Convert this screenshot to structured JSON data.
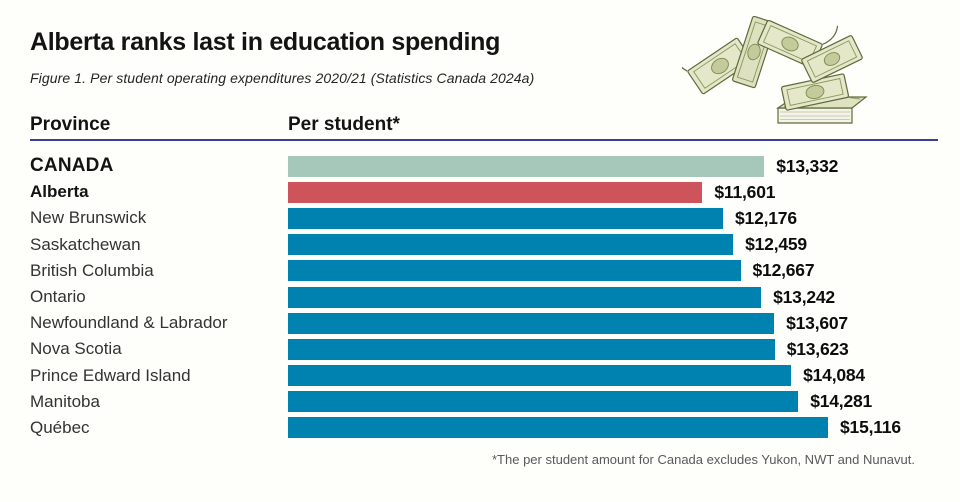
{
  "header": {
    "title": "Alberta ranks last in education spending",
    "subtitle": "Figure 1. Per student operating expenditures 2020/21 (Statistics Canada 2024a)"
  },
  "table_headers": {
    "province": "Province",
    "per_student": "Per student*"
  },
  "footnote": "*The per student amount for Canada excludes Yukon, NWT and Nunavut.",
  "colors": {
    "canada_bar": "#a5c8ba",
    "alberta_bar": "#cd545a",
    "default_bar": "#0082b0",
    "header_rule": "#3b3f94",
    "background": "#fefefb",
    "footnote_text": "#58595b"
  },
  "icons": {
    "money_illustration": "falling-dollar-bills"
  },
  "chart_data": {
    "type": "bar",
    "orientation": "horizontal",
    "title": "Alberta ranks last in education spending",
    "xlabel": "Per student*",
    "ylabel": "Province",
    "xlim": [
      0,
      15116
    ],
    "grid": false,
    "legend": "none",
    "categories": [
      "CANADA",
      "Alberta",
      "New Brunswick",
      "Saskatchewan",
      "British Columbia",
      "Ontario",
      "Newfoundland & Labrador",
      "Nova Scotia",
      "Prince Edward Island",
      "Manitoba",
      "Québec"
    ],
    "values": [
      13332,
      11601,
      12176,
      12459,
      12667,
      13242,
      13607,
      13623,
      14084,
      14281,
      15116
    ],
    "value_labels": [
      "$13,332",
      "$11,601",
      "$12,176",
      "$12,459",
      "$12,667",
      "$13,242",
      "$13,607",
      "$13,623",
      "$14,084",
      "$14,281",
      "$15,116"
    ],
    "bold_labels": [
      true,
      true,
      false,
      false,
      false,
      false,
      false,
      false,
      false,
      false,
      false
    ],
    "bar_colors": [
      "#a5c8ba",
      "#cd545a",
      "#0082b0",
      "#0082b0",
      "#0082b0",
      "#0082b0",
      "#0082b0",
      "#0082b0",
      "#0082b0",
      "#0082b0",
      "#0082b0"
    ]
  }
}
